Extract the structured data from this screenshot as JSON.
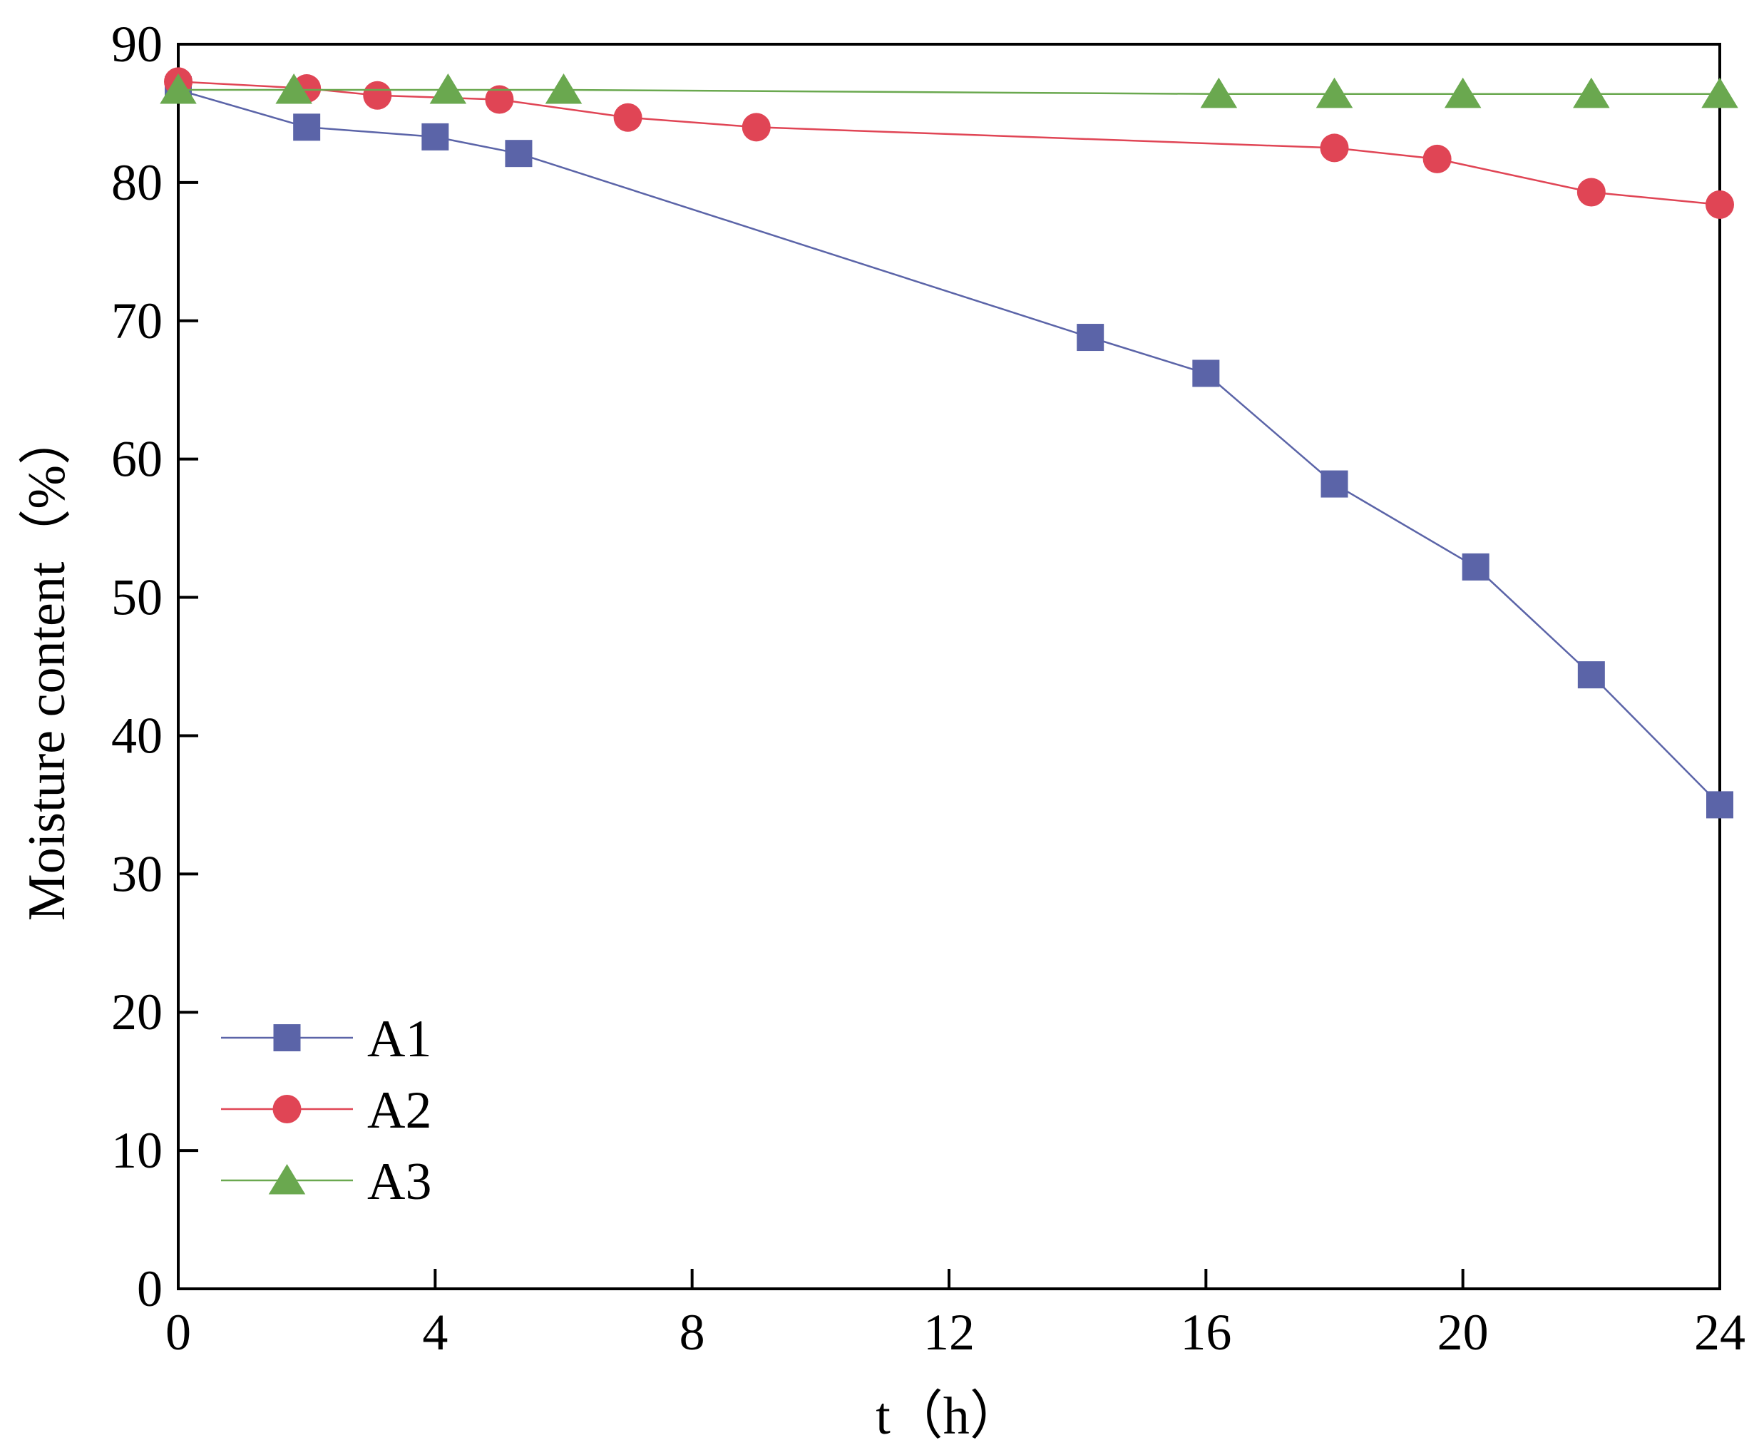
{
  "chart_data": {
    "type": "line",
    "title": "",
    "xlabel": "t（h）",
    "ylabel": "Moisture content（%）",
    "xlim": [
      0,
      24
    ],
    "ylim": [
      0,
      90
    ],
    "xticks": [
      0,
      4,
      8,
      12,
      16,
      20,
      24
    ],
    "yticks": [
      0,
      10,
      20,
      30,
      40,
      50,
      60,
      70,
      80,
      90
    ],
    "grid": false,
    "legend_position": "bottom-left",
    "series": [
      {
        "name": "A1",
        "color": "#5b64a8",
        "marker": "square",
        "points": [
          {
            "x": 0,
            "y": 86.7
          },
          {
            "x": 2,
            "y": 84.0
          },
          {
            "x": 4,
            "y": 83.3
          },
          {
            "x": 5.3,
            "y": 82.1
          },
          {
            "x": 14.2,
            "y": 68.8
          },
          {
            "x": 16,
            "y": 66.2
          },
          {
            "x": 18,
            "y": 58.2
          },
          {
            "x": 20.2,
            "y": 52.2
          },
          {
            "x": 22,
            "y": 44.4
          },
          {
            "x": 24,
            "y": 35.0
          }
        ]
      },
      {
        "name": "A2",
        "color": "#e04555",
        "marker": "circle",
        "points": [
          {
            "x": 0,
            "y": 87.3
          },
          {
            "x": 2,
            "y": 86.8
          },
          {
            "x": 3.1,
            "y": 86.3
          },
          {
            "x": 5,
            "y": 86.0
          },
          {
            "x": 7,
            "y": 84.7
          },
          {
            "x": 9,
            "y": 84.0
          },
          {
            "x": 18,
            "y": 82.5
          },
          {
            "x": 19.6,
            "y": 81.7
          },
          {
            "x": 22,
            "y": 79.3
          },
          {
            "x": 24,
            "y": 78.4
          }
        ]
      },
      {
        "name": "A3",
        "color": "#6aa84f",
        "marker": "triangle",
        "points": [
          {
            "x": 0,
            "y": 86.7
          },
          {
            "x": 1.8,
            "y": 86.7
          },
          {
            "x": 4.2,
            "y": 86.7
          },
          {
            "x": 6,
            "y": 86.7
          },
          {
            "x": 16.2,
            "y": 86.4
          },
          {
            "x": 18,
            "y": 86.4
          },
          {
            "x": 20,
            "y": 86.4
          },
          {
            "x": 22,
            "y": 86.4
          },
          {
            "x": 24,
            "y": 86.4
          }
        ]
      }
    ]
  }
}
